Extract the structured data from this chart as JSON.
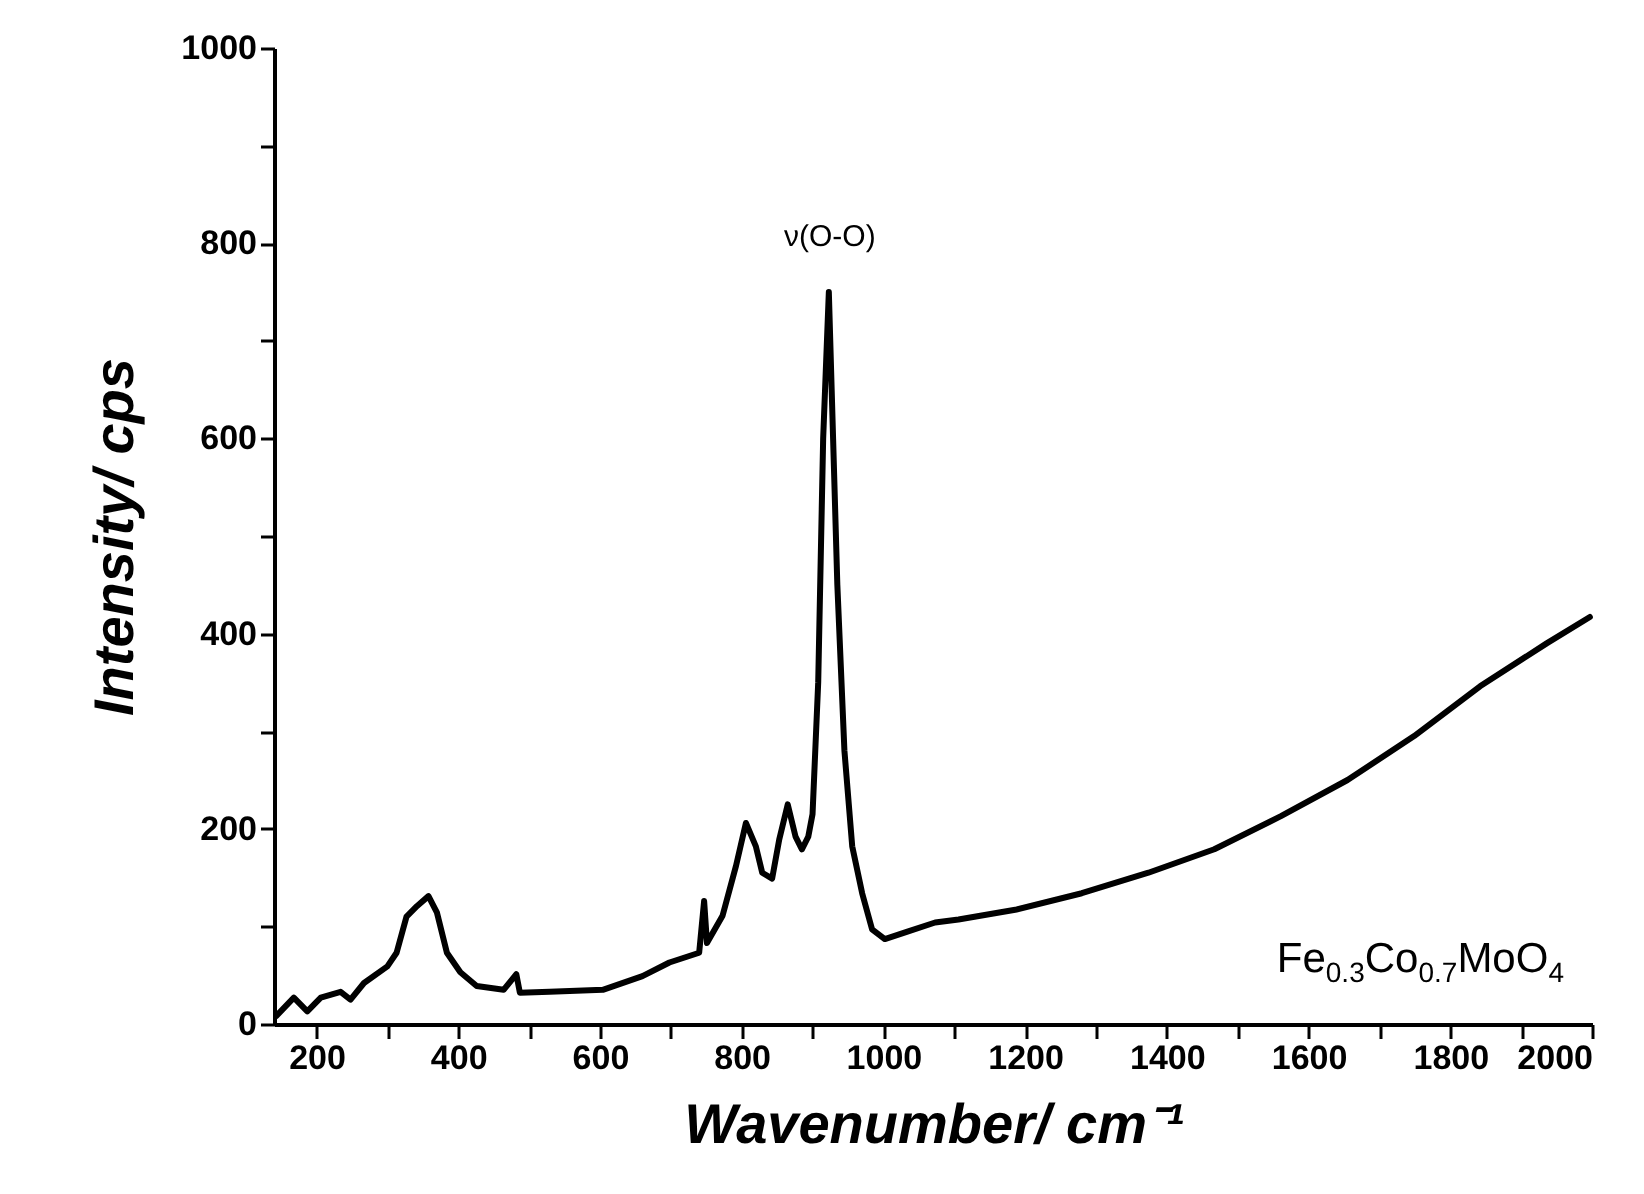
{
  "chart_data": {
    "type": "line",
    "xlabel": "Wavenumber/ cm⁻¹",
    "ylabel": "Intensity/ cps",
    "x": [
      143,
      168,
      187,
      206,
      234,
      248,
      267,
      300,
      313,
      327,
      342,
      358,
      370,
      384,
      403,
      426,
      464,
      482,
      487,
      529,
      604,
      660,
      698,
      740,
      747,
      751,
      773,
      792,
      806,
      820,
      829,
      843,
      853,
      865,
      876,
      885,
      894,
      900,
      908,
      915,
      923,
      929,
      935,
      945,
      956,
      970,
      984,
      1002,
      1035,
      1073,
      1106,
      1186,
      1280,
      1374,
      1467,
      1561,
      1655,
      1749,
      1842,
      1936,
      1997
    ],
    "series": [
      {
        "color": "#000000",
        "values": [
          8,
          27,
          13,
          27,
          33,
          25,
          42,
          59,
          73,
          110,
          121,
          131,
          114,
          73,
          53,
          39,
          35,
          51,
          32,
          33,
          35,
          49,
          63,
          73,
          126,
          83,
          111,
          162,
          206,
          182,
          155,
          149,
          189,
          225,
          192,
          179,
          192,
          215,
          350,
          600,
          750,
          600,
          450,
          280,
          182,
          134,
          97,
          87,
          95,
          104,
          107,
          117,
          134,
          155,
          179,
          213,
          250,
          295,
          346,
          390,
          417
        ]
      }
    ],
    "xlim": [
      140,
      2000
    ],
    "ylim": [
      0,
      1000
    ],
    "xticks": [
      200,
      {
        "value": 300,
        "label": null
      },
      400,
      {
        "value": 500,
        "label": null
      },
      600,
      {
        "value": 700,
        "label": null
      },
      800,
      {
        "value": 900,
        "label": null
      },
      1000,
      {
        "value": 1100,
        "label": null
      },
      1200,
      {
        "value": 1300,
        "label": null
      },
      1400,
      {
        "value": 1500,
        "label": null
      },
      1600,
      {
        "value": 1700,
        "label": null
      },
      1800,
      {
        "value": 1900,
        "label": null
      },
      2000
    ],
    "yticks": [
      0,
      {
        "value": 100,
        "label": null
      },
      200,
      {
        "value": 300,
        "label": null
      },
      400,
      {
        "value": 500,
        "label": null
      },
      600,
      {
        "value": 700,
        "label": null
      },
      800,
      {
        "value": 900,
        "label": null
      },
      1000
    ],
    "annotations": [
      "ν(O-O)",
      "Fe$_{0.3}$Co$_{0.7}$MoO$_{4}$"
    ],
    "grid": false,
    "line_style": "solid"
  }
}
